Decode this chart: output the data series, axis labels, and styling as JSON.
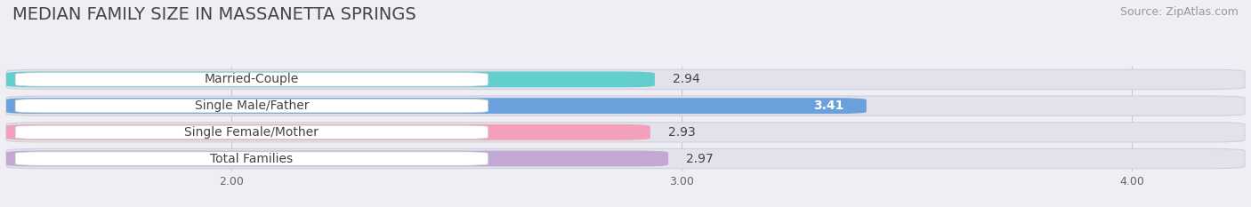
{
  "title": "MEDIAN FAMILY SIZE IN MASSANETTA SPRINGS",
  "source": "Source: ZipAtlas.com",
  "categories": [
    "Married-Couple",
    "Single Male/Father",
    "Single Female/Mother",
    "Total Families"
  ],
  "values": [
    2.94,
    3.41,
    2.93,
    2.97
  ],
  "bar_colors": [
    "#62cece",
    "#6ca0dc",
    "#f2a0bc",
    "#c4a8d4"
  ],
  "value_colors": [
    "#555555",
    "#ffffff",
    "#555555",
    "#555555"
  ],
  "xlim_left": 1.5,
  "xlim_right": 4.25,
  "xticks": [
    2.0,
    3.0,
    4.0
  ],
  "xtick_labels": [
    "2.00",
    "3.00",
    "4.00"
  ],
  "background_color": "#eeeef4",
  "bar_bg_color": "#e2e2ec",
  "title_fontsize": 14,
  "label_fontsize": 10,
  "value_fontsize": 10,
  "source_fontsize": 9
}
